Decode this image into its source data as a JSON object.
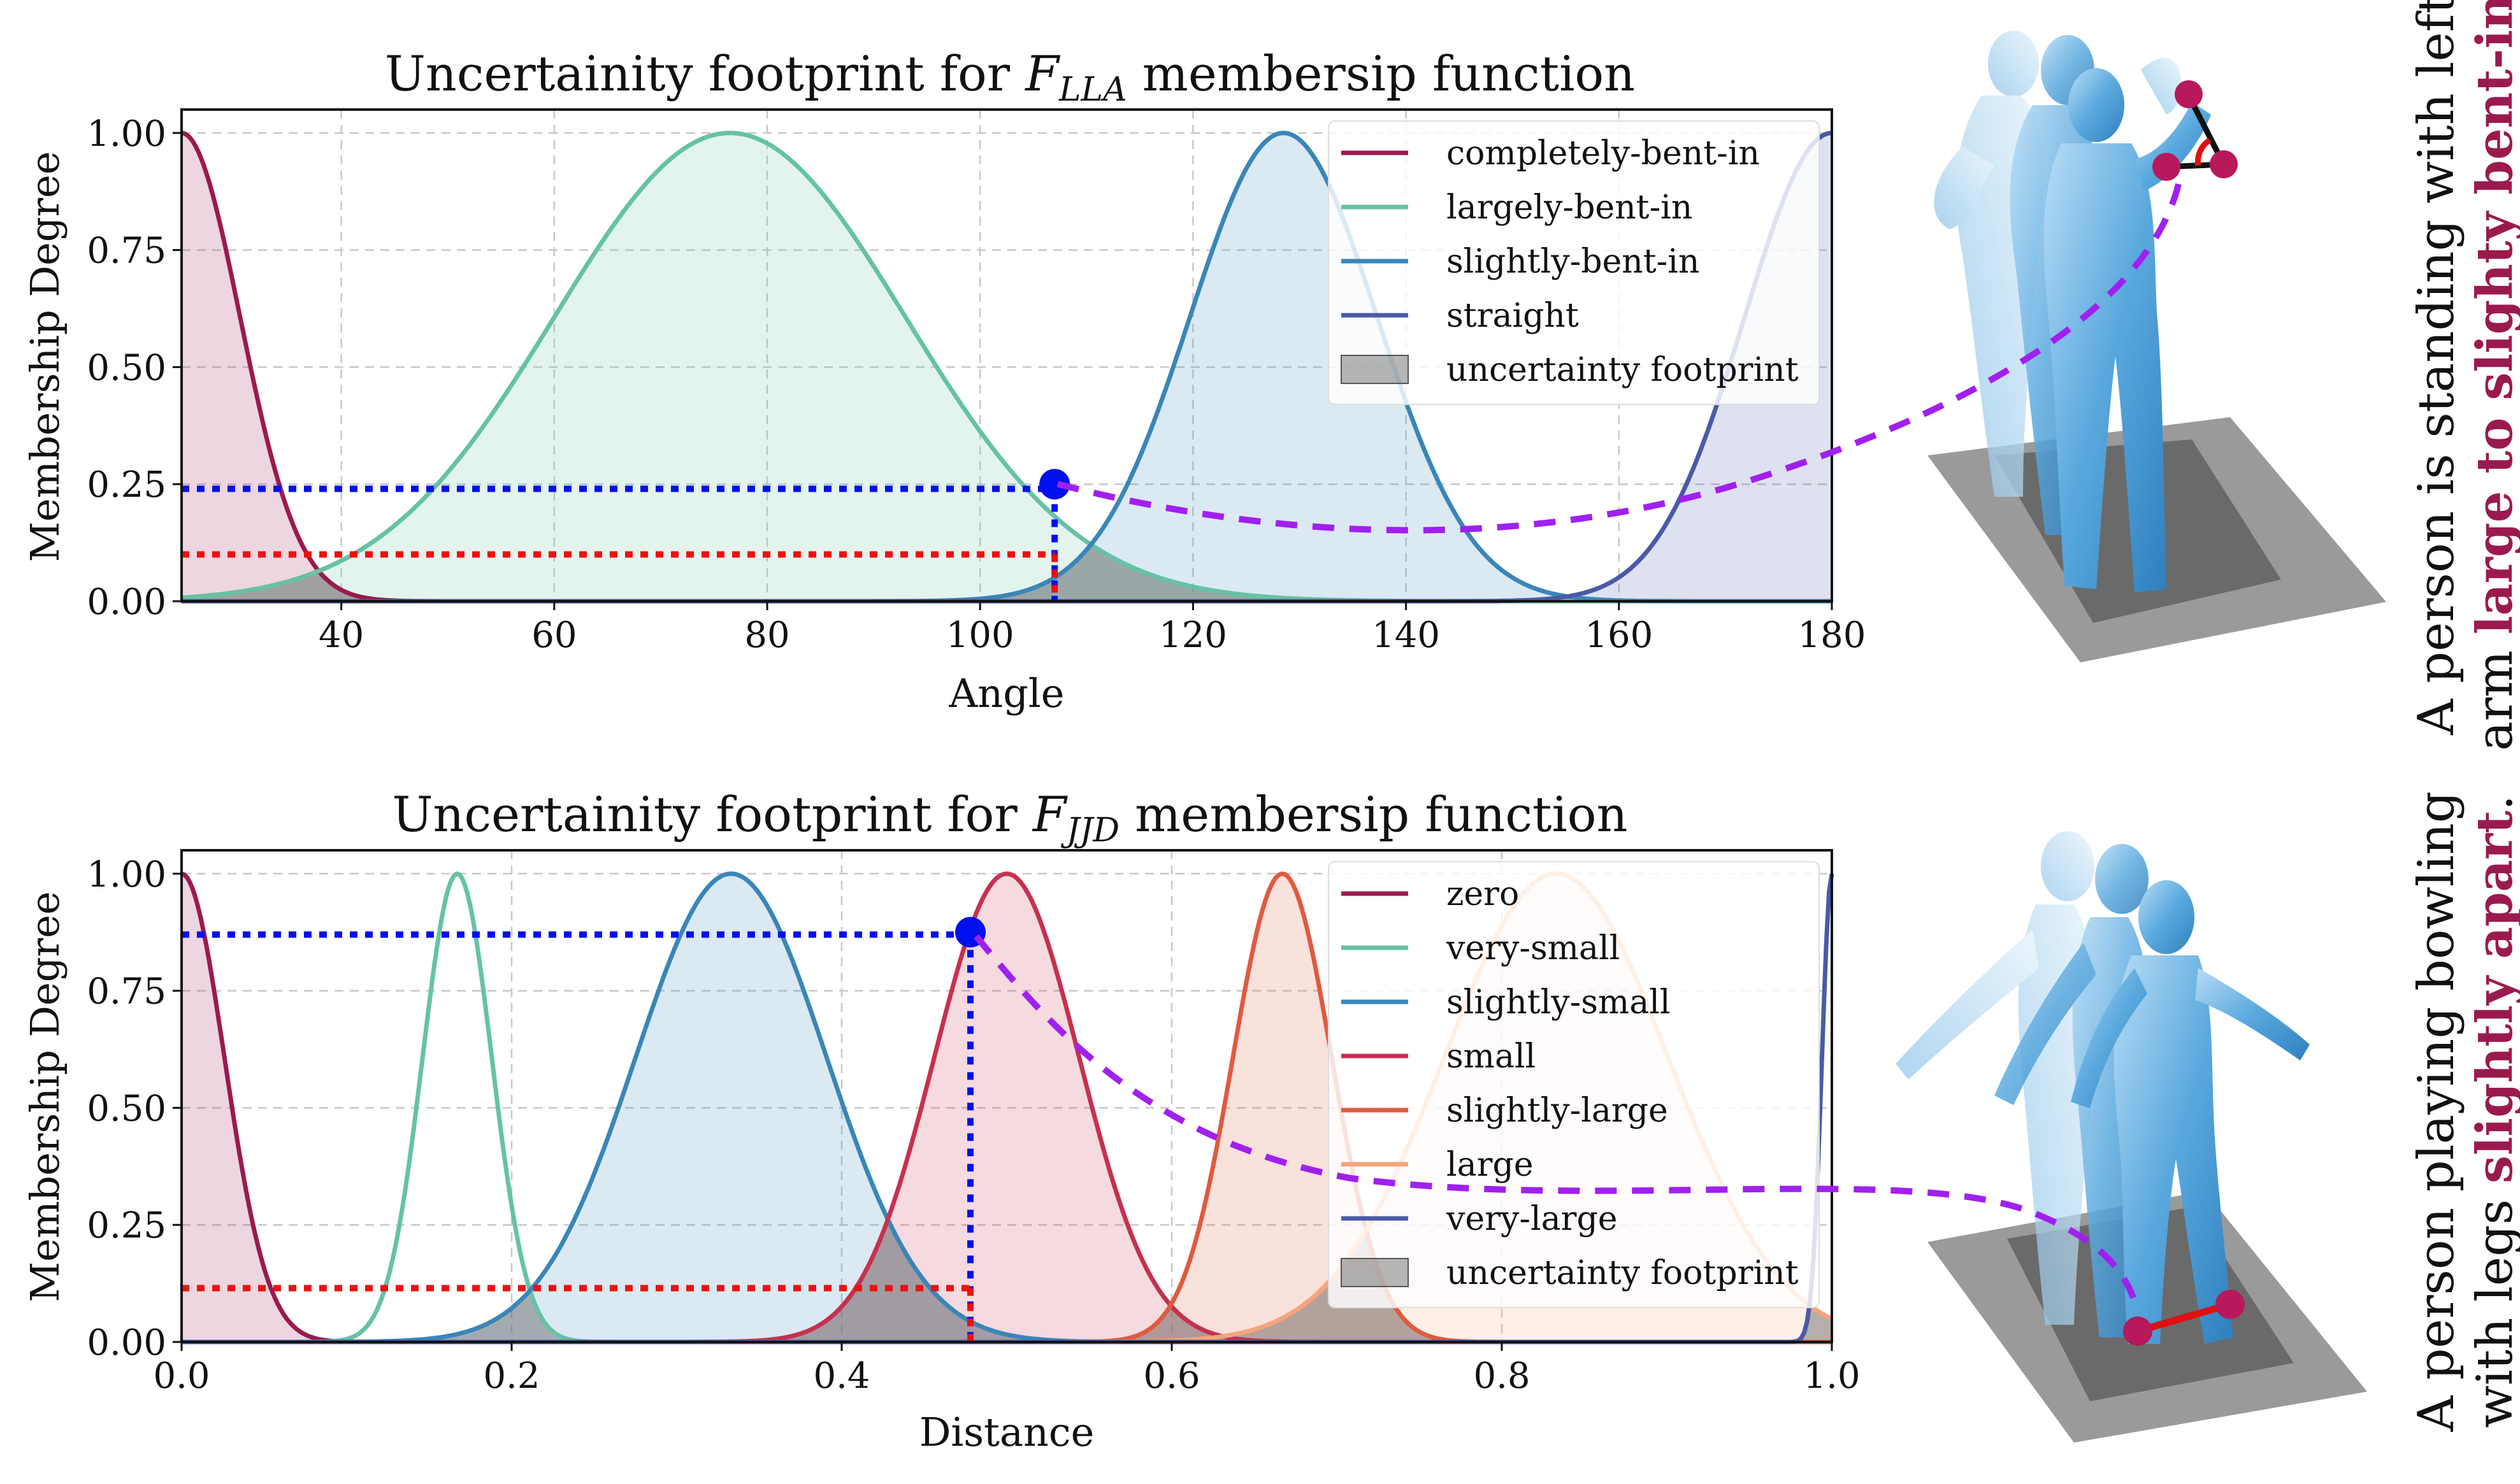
{
  "chart_data": [
    {
      "type": "line",
      "title": "Uncertainity footprint for F_LLA membersip function",
      "title_parts": {
        "pre": "Uncertainity footprint for ",
        "sym": "F",
        "sub": "LLA",
        "post": " membersip function"
      },
      "xlabel": "Angle",
      "ylabel": "Membership Degree",
      "xlim": [
        25,
        180
      ],
      "ylim": [
        0,
        1.05
      ],
      "xticks": [
        "40",
        "60",
        "80",
        "100",
        "120",
        "140",
        "160",
        "180"
      ],
      "xtick_values": [
        40,
        60,
        80,
        100,
        120,
        140,
        160,
        180
      ],
      "yticks": [
        "0.00",
        "0.25",
        "0.50",
        "0.75",
        "1.00"
      ],
      "ytick_values": [
        0,
        0.25,
        0.5,
        0.75,
        1.0
      ],
      "grid": true,
      "legend_position": "top-right",
      "series": [
        {
          "name": "completely-bent-in",
          "color": "#9b1a4e",
          "center": 25,
          "sigma": 5.5,
          "fill": true
        },
        {
          "name": "largely-bent-in",
          "color": "#66c2a5",
          "center": 76.5,
          "sigma": 16.5,
          "fill": true
        },
        {
          "name": "slightly-bent-in",
          "color": "#3a86b8",
          "center": 128.5,
          "sigma": 8.8,
          "fill": true
        },
        {
          "name": "straight",
          "color": "#4a5aa8",
          "center": 180,
          "sigma": 8.2,
          "fill": true
        }
      ],
      "footprint_label": "uncertainty footprint",
      "marker": {
        "x": 107,
        "y": 0.25
      },
      "blue_level": 0.24,
      "red_level": 0.1
    },
    {
      "type": "line",
      "title": "Uncertainity footprint for F_JJD membersip function",
      "title_parts": {
        "pre": "Uncertainity footprint for ",
        "sym": "F",
        "sub": "JJD",
        "post": " membersip function"
      },
      "xlabel": "Distance",
      "ylabel": "Membership Degree",
      "xlim": [
        0,
        1.0
      ],
      "ylim": [
        0,
        1.05
      ],
      "xticks": [
        "0.0",
        "0.2",
        "0.4",
        "0.6",
        "0.8",
        "1.0"
      ],
      "xtick_values": [
        0,
        0.2,
        0.4,
        0.6,
        0.8,
        1.0
      ],
      "yticks": [
        "0.00",
        "0.25",
        "0.50",
        "0.75",
        "1.00"
      ],
      "ytick_values": [
        0,
        0.25,
        0.5,
        0.75,
        1.0
      ],
      "grid": true,
      "legend_position": "top-right",
      "series": [
        {
          "name": "zero",
          "color": "#9b1a4e",
          "center": 0,
          "sigma": 0.026,
          "fill": true
        },
        {
          "name": "very-small",
          "color": "#66c2a5",
          "center": 0.167,
          "sigma": 0.021,
          "fill": false
        },
        {
          "name": "slightly-small",
          "color": "#3a86b8",
          "center": 0.333,
          "sigma": 0.058,
          "fill": true
        },
        {
          "name": "small",
          "color": "#c7304f",
          "center": 0.5,
          "sigma": 0.044,
          "fill": true
        },
        {
          "name": "slightly-large",
          "color": "#e05a3f",
          "center": 0.667,
          "sigma": 0.03,
          "fill": true
        },
        {
          "name": "large",
          "color": "#f7a47c",
          "center": 0.833,
          "sigma": 0.068,
          "fill": true
        },
        {
          "name": "very-large",
          "color": "#4a5aa8",
          "center": 1.0,
          "sigma": 0.006,
          "fill": false
        }
      ],
      "footprint_label": "uncertainty footprint",
      "marker": {
        "x": 0.478,
        "y": 0.875
      },
      "blue_level": 0.87,
      "red_level": 0.115
    }
  ],
  "captions": [
    {
      "line1": "A person is standing with left",
      "line2_plain": "arm ",
      "line2_bold": "large to slighty bent-in",
      "line2_end": "."
    },
    {
      "line1": "A person playing bowling",
      "line2_plain": "with legs ",
      "line2_bold": "slightly apart",
      "line2_end": "."
    }
  ],
  "figures": [
    {
      "name": "standing-pose-render",
      "description_color": "#4a9fd8"
    },
    {
      "name": "bowling-pose-render",
      "description_color": "#4a9fd8"
    }
  ]
}
